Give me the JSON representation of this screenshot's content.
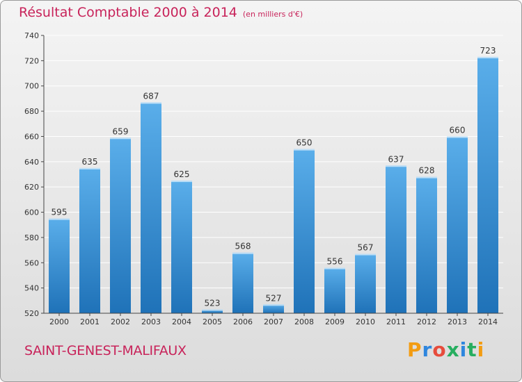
{
  "header": {
    "title": "Résultat Comptable 2000 à 2014",
    "subtitle": "(en milliers d'€)"
  },
  "footer": {
    "commune": "SAINT-GENEST-MALIFAUX",
    "brand_letters": [
      "P",
      "r",
      "o",
      "x",
      "i",
      "t",
      "i"
    ]
  },
  "colors": {
    "title": "#c8235a",
    "bar_light": "#5aaeea",
    "bar_dark": "#1f72b8",
    "grid": "#ffffff",
    "brand": [
      "#f39c12",
      "#2e86de",
      "#e74c3c",
      "#27ae60",
      "#2e86de",
      "#27ae60",
      "#f39c12"
    ]
  },
  "chart_data": {
    "type": "bar",
    "title": "Résultat Comptable 2000 à 2014",
    "subtitle": "(en milliers d'€)",
    "categories": [
      "2000",
      "2001",
      "2002",
      "2003",
      "2004",
      "2005",
      "2006",
      "2007",
      "2008",
      "2009",
      "2010",
      "2011",
      "2012",
      "2013",
      "2014"
    ],
    "values": [
      595,
      635,
      659,
      687,
      625,
      523,
      568,
      527,
      650,
      556,
      567,
      637,
      628,
      660,
      723
    ],
    "ylim": [
      520,
      740
    ],
    "yticks": [
      520,
      540,
      560,
      580,
      600,
      620,
      640,
      660,
      680,
      700,
      720,
      740
    ],
    "grid": true,
    "data_labels": true,
    "xlabel": "",
    "ylabel": ""
  }
}
